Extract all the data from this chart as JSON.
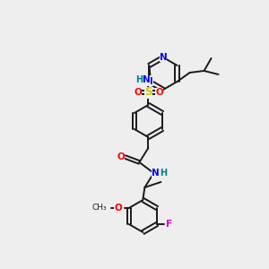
{
  "background_color": "#eeeeee",
  "bond_color": "#1a1a1a",
  "atom_colors": {
    "N": "#0000ff",
    "O": "#ff0000",
    "S": "#cccc00",
    "F": "#cc00cc",
    "H": "#008080",
    "C": "#1a1a1a"
  },
  "lw": 1.4,
  "fs": 7.5
}
